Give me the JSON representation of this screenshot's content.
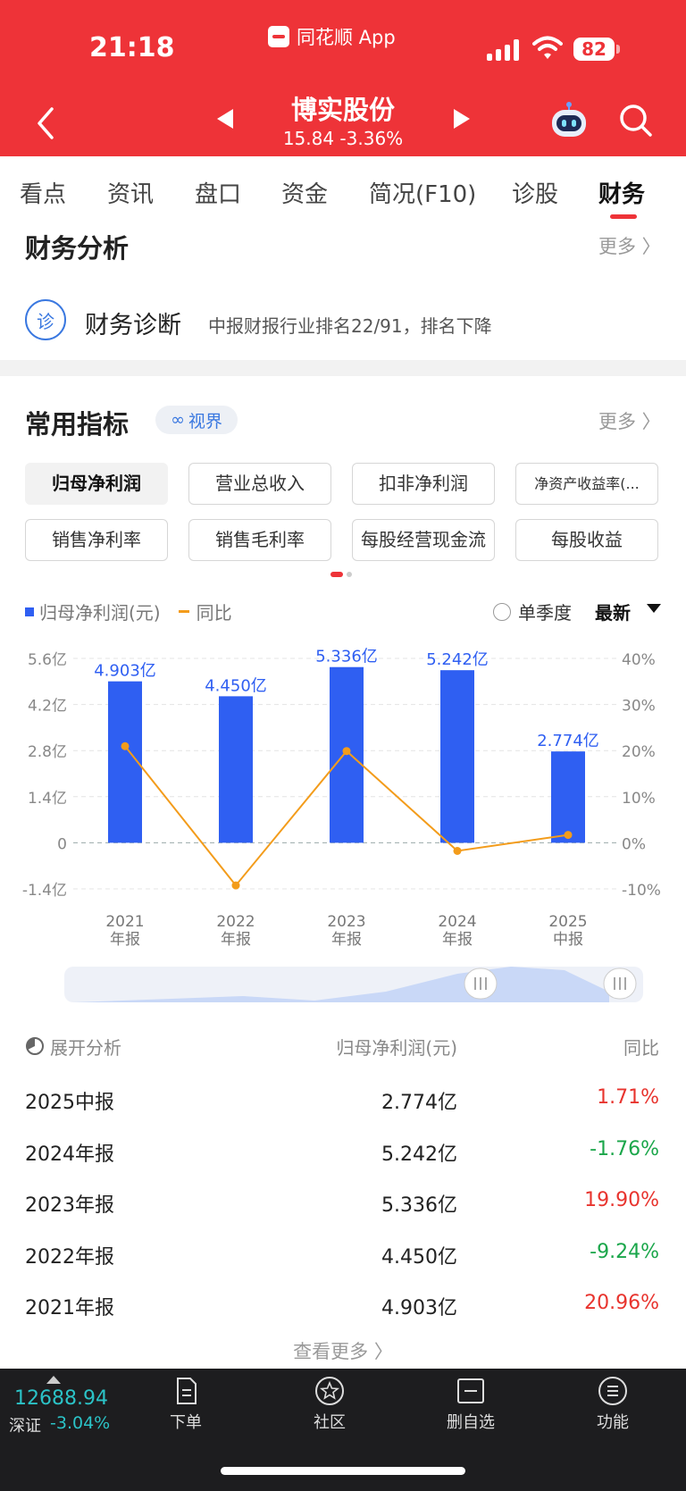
{
  "status_bar": {
    "time": "21:18",
    "app_name": "同花顺 App",
    "battery": "82"
  },
  "header": {
    "stock_name": "博实股份",
    "quote": "15.84 -3.36%"
  },
  "tabs": [
    "看点",
    "资讯",
    "盘口",
    "资金",
    "简况(F10)",
    "诊股",
    "财务"
  ],
  "active_tab": "财务",
  "finance_analysis": {
    "title": "财务分析",
    "more": "更多 〉",
    "diag_icon_char": "诊",
    "diag_label": "财务诊断",
    "diag_text": "中报财报行业排名22/91，排名下降"
  },
  "indicators": {
    "title": "常用指标",
    "vision_badge": "视界",
    "more": "更多 〉",
    "buttons": [
      "归母净利润",
      "营业总收入",
      "扣非净利润",
      "净资产收益率(...",
      "销售净利率",
      "销售毛利率",
      "每股经营现金流",
      "每股收益"
    ],
    "active_button": "归母净利润"
  },
  "legend": {
    "bar_label": "归母净利润(元)",
    "line_label": "同比",
    "single_quarter": "单季度",
    "latest": "最新"
  },
  "chart_data": {
    "type": "bar",
    "categories": [
      "2021\n年报",
      "2022\n年报",
      "2023\n年报",
      "2024\n年报",
      "2025\n中报"
    ],
    "series": [
      {
        "name": "归母净利润(元)",
        "values": [
          4.903,
          4.45,
          5.336,
          5.242,
          2.774
        ],
        "labels": [
          "4.903亿",
          "4.450亿",
          "5.336亿",
          "5.242亿",
          "2.774亿"
        ],
        "color": "#2f5ff2"
      },
      {
        "name": "同比",
        "type": "line",
        "values": [
          20.96,
          -9.24,
          19.9,
          -1.76,
          1.71
        ],
        "color": "#f39c1b"
      }
    ],
    "y_left": {
      "ticks": [
        "5.6亿",
        "4.2亿",
        "2.8亿",
        "1.4亿",
        "0",
        "-1.4亿"
      ],
      "range": [
        -1.4,
        5.6
      ]
    },
    "y_right": {
      "ticks": [
        "40%",
        "30%",
        "20%",
        "10%",
        "0%",
        "-10%"
      ],
      "range": [
        -10,
        40
      ]
    },
    "grid": true
  },
  "table": {
    "header": {
      "expand": "展开分析",
      "col2": "归母净利润(元)",
      "col3": "同比"
    },
    "rows": [
      {
        "period": "2025中报",
        "value": "2.774亿",
        "yoy": "1.71%",
        "dir": "up"
      },
      {
        "period": "2024年报",
        "value": "5.242亿",
        "yoy": "-1.76%",
        "dir": "down"
      },
      {
        "period": "2023年报",
        "value": "5.336亿",
        "yoy": "19.90%",
        "dir": "up"
      },
      {
        "period": "2022年报",
        "value": "4.450亿",
        "yoy": "-9.24%",
        "dir": "down"
      },
      {
        "period": "2021年报",
        "value": "4.903亿",
        "yoy": "20.96%",
        "dir": "up"
      }
    ],
    "see_more": "查看更多 〉"
  },
  "bottom_bar": {
    "index_value": "12688.94",
    "index_name": "深证",
    "index_change": "-3.04%",
    "nav": [
      "下单",
      "社区",
      "删自选",
      "功能"
    ]
  },
  "colors": {
    "brand_red": "#ee3338",
    "up": "#e8342e",
    "down": "#1aa64a",
    "bar": "#2f5ff2",
    "line": "#f39c1b",
    "link_blue": "#3a78e0"
  }
}
